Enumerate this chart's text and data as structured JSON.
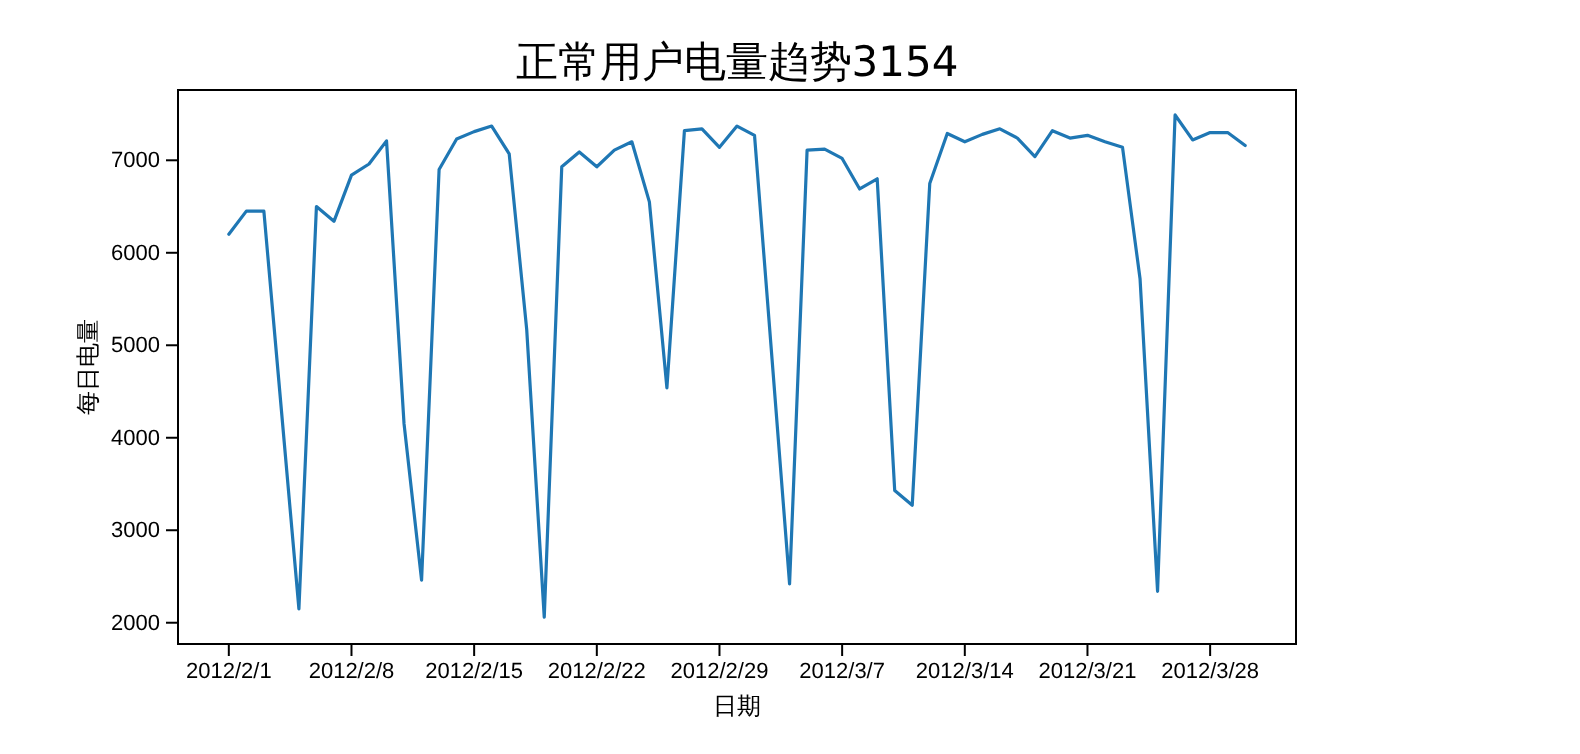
{
  "chart_data": {
    "type": "line",
    "title": "正常用户电量趋势3154",
    "xlabel": "日期",
    "ylabel": "每日电量",
    "x": [
      "2012-02-01",
      "2012-02-02",
      "2012-02-03",
      "2012-02-04",
      "2012-02-05",
      "2012-02-06",
      "2012-02-07",
      "2012-02-08",
      "2012-02-09",
      "2012-02-10",
      "2012-02-11",
      "2012-02-12",
      "2012-02-13",
      "2012-02-14",
      "2012-02-15",
      "2012-02-16",
      "2012-02-17",
      "2012-02-18",
      "2012-02-19",
      "2012-02-20",
      "2012-02-21",
      "2012-02-22",
      "2012-02-23",
      "2012-02-24",
      "2012-02-25",
      "2012-02-26",
      "2012-02-27",
      "2012-02-28",
      "2012-02-29",
      "2012-03-01",
      "2012-03-02",
      "2012-03-03",
      "2012-03-04",
      "2012-03-05",
      "2012-03-06",
      "2012-03-07",
      "2012-03-08",
      "2012-03-09",
      "2012-03-10",
      "2012-03-11",
      "2012-03-12",
      "2012-03-13",
      "2012-03-14",
      "2012-03-15",
      "2012-03-16",
      "2012-03-17",
      "2012-03-18",
      "2012-03-19",
      "2012-03-20",
      "2012-03-21",
      "2012-03-22",
      "2012-03-23",
      "2012-03-24",
      "2012-03-25",
      "2012-03-26",
      "2012-03-27",
      "2012-03-28",
      "2012-03-29",
      "2012-03-30"
    ],
    "series": [
      {
        "color": "#1f77b4",
        "values": [
          6200,
          6450,
          6450,
          4300,
          2150,
          6500,
          6340,
          6840,
          6960,
          7210,
          4150,
          2460,
          6900,
          7230,
          7310,
          7370,
          7070,
          5170,
          2060,
          6930,
          7090,
          6930,
          7110,
          7200,
          6550,
          4540,
          7320,
          7340,
          7140,
          7370,
          7270,
          4850,
          2420,
          7110,
          7120,
          7020,
          6690,
          6800,
          3430,
          3270,
          6750,
          7290,
          7200,
          7280,
          7340,
          7240,
          7040,
          7320,
          7240,
          7270,
          7200,
          7140,
          5720,
          2340,
          7490,
          7220,
          7300,
          7300,
          7160
        ]
      }
    ],
    "xlim": [
      "2012-01-29T02:24",
      "2012-04-01T21:36"
    ],
    "xticks": [
      {
        "value": "2012-02-01",
        "label": "2012/2/1"
      },
      {
        "value": "2012-02-08",
        "label": "2012/2/8"
      },
      {
        "value": "2012-02-15",
        "label": "2012/2/15"
      },
      {
        "value": "2012-02-22",
        "label": "2012/2/22"
      },
      {
        "value": "2012-02-29",
        "label": "2012/2/29"
      },
      {
        "value": "2012-03-07",
        "label": "2012/3/7"
      },
      {
        "value": "2012-03-14",
        "label": "2012/3/14"
      },
      {
        "value": "2012-03-21",
        "label": "2012/3/21"
      },
      {
        "value": "2012-03-28",
        "label": "2012/3/28"
      }
    ],
    "ylim": [
      1770,
      7760
    ],
    "yticks": [
      2000,
      3000,
      4000,
      5000,
      6000,
      7000
    ],
    "grid": false
  }
}
